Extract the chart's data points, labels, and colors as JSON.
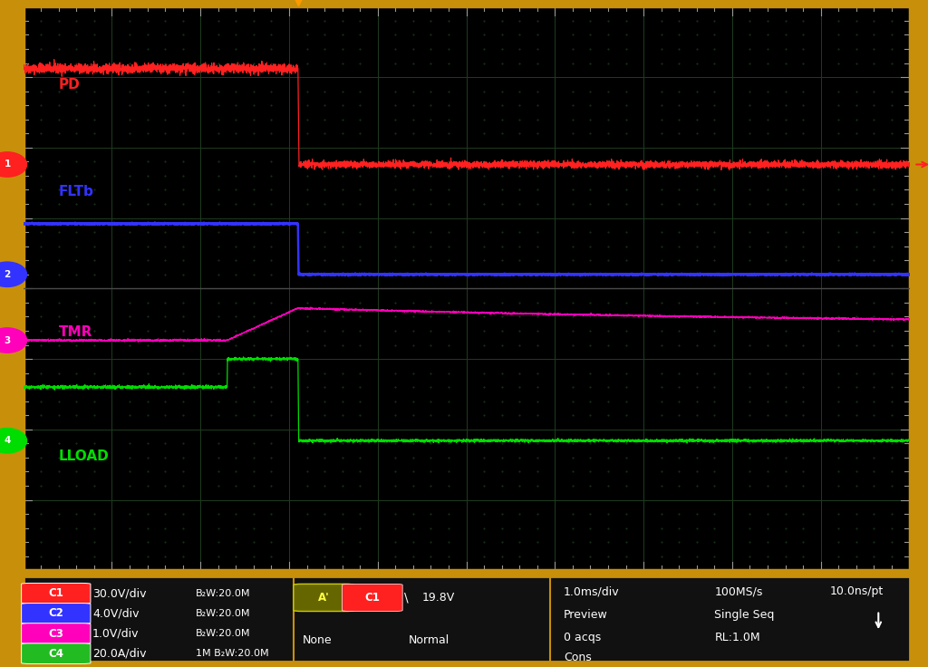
{
  "outer_bg": "#c8900a",
  "plot_bg": "#000000",
  "ch1_color": "#ff2020",
  "ch2_color": "#3333ff",
  "ch3_color": "#ff00bb",
  "ch4_color": "#00dd00",
  "ch1_label": "PD",
  "ch2_label": "FLTb",
  "ch3_label": "TMR",
  "ch4_label": "LLOAD",
  "time_per_div": "1.0ms/div",
  "sample_rate": "100MS/s",
  "ns_per_pt": "10.0ns/pt",
  "ch1_scale": "30.0V/div",
  "ch2_scale": "4.0V/div",
  "ch3_scale": "1.0V/div",
  "ch4_scale": "20.0A/div",
  "ch1_bw": "BW:20.0M",
  "ch2_bw": "BW:20.0M",
  "ch3_bw": "BW:20.0M",
  "ch4_imp": "1M",
  "ch4_bw": "BW:20.0M",
  "trigger_level": "19.8V",
  "trigger_mode": "None",
  "trigger_coupling": "Normal",
  "acq_mode": "Preview",
  "acq_type": "Single Seq",
  "n_acqs": "0 acqs",
  "rl": "RL:1.0M",
  "cons": "Cons",
  "total_time": 10.0,
  "step_time": 3.1,
  "load_step_time": 2.3,
  "noise_amplitude": 0.012,
  "grid_rows": 8,
  "grid_cols": 10
}
